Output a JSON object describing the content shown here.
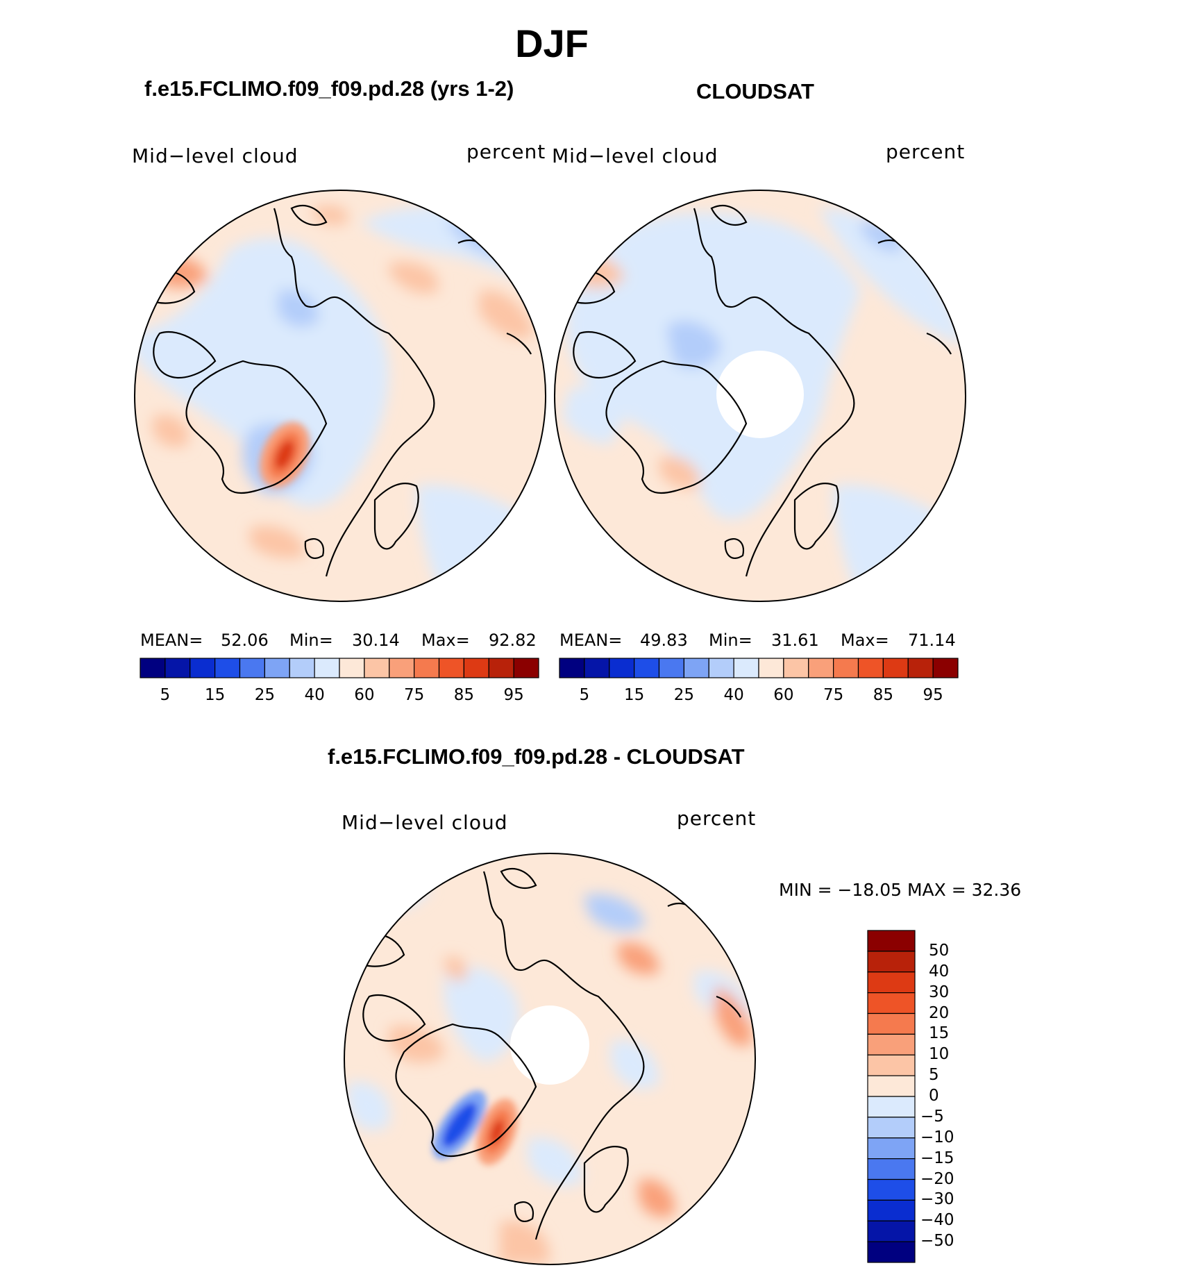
{
  "title": "DJF",
  "panels": [
    {
      "title": "f.e15.FCLIMO.f09_f09.pd.28 (yrs 1-2)",
      "variable": "Mid−level cloud",
      "units": "percent",
      "stats": {
        "mean_label": "MEAN=",
        "mean": "52.06",
        "min_label": "Min=",
        "min": "30.14",
        "max_label": "Max=",
        "max": "92.82"
      }
    },
    {
      "title": "CLOUDSAT",
      "variable": "Mid−level cloud",
      "units": "percent",
      "stats": {
        "mean_label": "MEAN=",
        "mean": "49.83",
        "min_label": "Min=",
        "min": "31.61",
        "max_label": "Max=",
        "max": "71.14"
      }
    },
    {
      "title": "f.e15.FCLIMO.f09_f09.pd.28 - CLOUDSAT",
      "variable": "Mid−level cloud",
      "units": "percent",
      "minmax": "MIN = −18.05 MAX =   32.36"
    }
  ],
  "colorbars": {
    "absolute": {
      "colors": [
        "#000080",
        "#0515a8",
        "#0a2dd0",
        "#1e4ee8",
        "#4a78f0",
        "#7ea4f5",
        "#b3cdfa",
        "#dbeafd",
        "#fde8d8",
        "#fcc5a6",
        "#f9a07a",
        "#f57a4e",
        "#ee5427",
        "#dd3a14",
        "#b8220a",
        "#8b0000"
      ],
      "tick_labels": [
        "5",
        "15",
        "25",
        "40",
        "60",
        "75",
        "85",
        "95"
      ]
    },
    "difference": {
      "colors": [
        "#8b0000",
        "#b8220a",
        "#dd3a14",
        "#ee5427",
        "#f57a4e",
        "#f9a07a",
        "#fcc5a6",
        "#fde8d8",
        "#dbeafd",
        "#b3cdfa",
        "#7ea4f5",
        "#4a78f0",
        "#1e4ee8",
        "#0a2dd0",
        "#0515a8",
        "#000080"
      ],
      "tick_labels": [
        "50",
        "40",
        "30",
        "20",
        "15",
        "10",
        "5",
        "0",
        "−5",
        "−10",
        "−15",
        "−20",
        "−30",
        "−40",
        "−50"
      ]
    }
  },
  "chart_data": [
    {
      "type": "heatmap",
      "projection": "north-polar-stereographic",
      "title": "f.e15.FCLIMO.f09_f09.pd.28 (yrs 1-2)",
      "variable": "Mid-level cloud",
      "units": "percent",
      "mean": 52.06,
      "min": 30.14,
      "max": 92.82,
      "levels": [
        5,
        10,
        15,
        20,
        25,
        30,
        40,
        50,
        60,
        70,
        75,
        80,
        85,
        90,
        95
      ]
    },
    {
      "type": "heatmap",
      "projection": "north-polar-stereographic",
      "title": "CLOUDSAT",
      "variable": "Mid-level cloud",
      "units": "percent",
      "mean": 49.83,
      "min": 31.61,
      "max": 71.14,
      "levels": [
        5,
        10,
        15,
        20,
        25,
        30,
        40,
        50,
        60,
        70,
        75,
        80,
        85,
        90,
        95
      ]
    },
    {
      "type": "heatmap",
      "projection": "north-polar-stereographic",
      "title": "f.e15.FCLIMO.f09_f09.pd.28 - CLOUDSAT",
      "variable": "Mid-level cloud",
      "units": "percent",
      "min": -18.05,
      "max": 32.36,
      "levels": [
        -50,
        -40,
        -30,
        -20,
        -15,
        -10,
        -5,
        0,
        5,
        10,
        15,
        20,
        30,
        40,
        50
      ]
    }
  ]
}
